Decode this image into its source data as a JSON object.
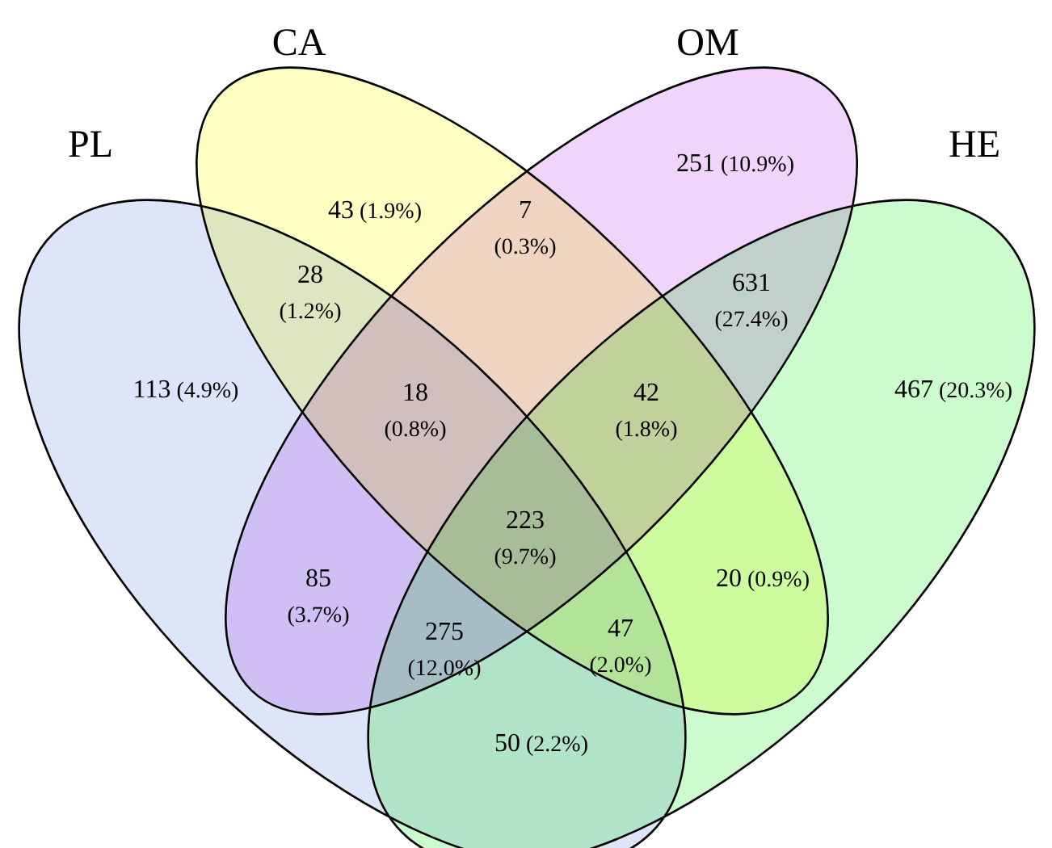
{
  "chart_data": {
    "type": "other",
    "annotations": [
      "PL",
      "CA",
      "OM",
      "HE"
    ],
    "categories": [
      "113",
      "43",
      "251",
      "467",
      "28",
      "7",
      "631",
      "18",
      "42",
      "223",
      "85",
      "275",
      "47",
      "20",
      "50"
    ],
    "values": [
      4.9,
      1.9,
      10.9,
      20.3,
      1.2,
      0.3,
      27.4,
      0.8,
      1.8,
      9.7,
      3.7,
      12.0,
      2.0,
      0.9,
      2.2
    ],
    "value_labels": [
      "(4.9%)",
      "(1.9%)",
      "(10.9%)",
      "(20.3%)",
      "(1.2%)",
      "(0.3%)",
      "(27.4%)",
      "(0.8%)",
      "(1.8%)",
      "(9.7%)",
      "(3.7%)",
      "(12.0%)",
      "(2.0%)",
      "(0.9%)",
      "(2.2%)"
    ]
  }
}
